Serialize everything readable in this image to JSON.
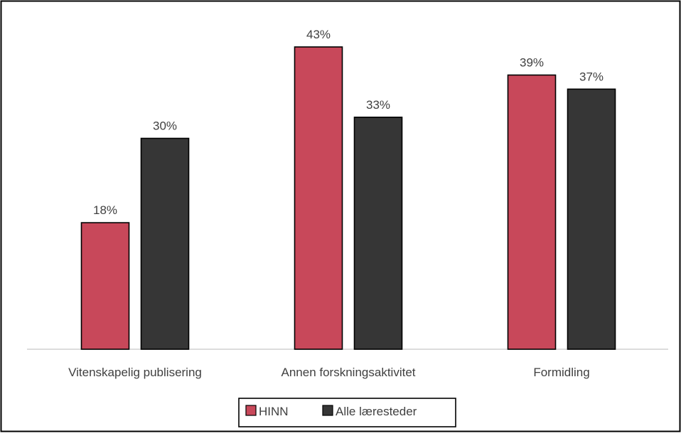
{
  "chart_data": {
    "type": "bar",
    "categories": [
      "Vitenskapelig publisering",
      "Annen forskningsaktivitet",
      "Formidling"
    ],
    "series": [
      {
        "name": "HINN",
        "values": [
          18,
          43,
          39
        ],
        "labels": [
          "18%",
          "43%",
          "39%"
        ],
        "color": "#c8485a"
      },
      {
        "name": "Alle læresteder",
        "values": [
          30,
          33,
          37
        ],
        "labels": [
          "30%",
          "33%",
          "37%"
        ],
        "color": "#363636"
      }
    ],
    "ylim": [
      0,
      45
    ],
    "unit": "%",
    "grid": false,
    "legend_position": "bottom",
    "title": "",
    "xlabel": "",
    "ylabel": ""
  }
}
